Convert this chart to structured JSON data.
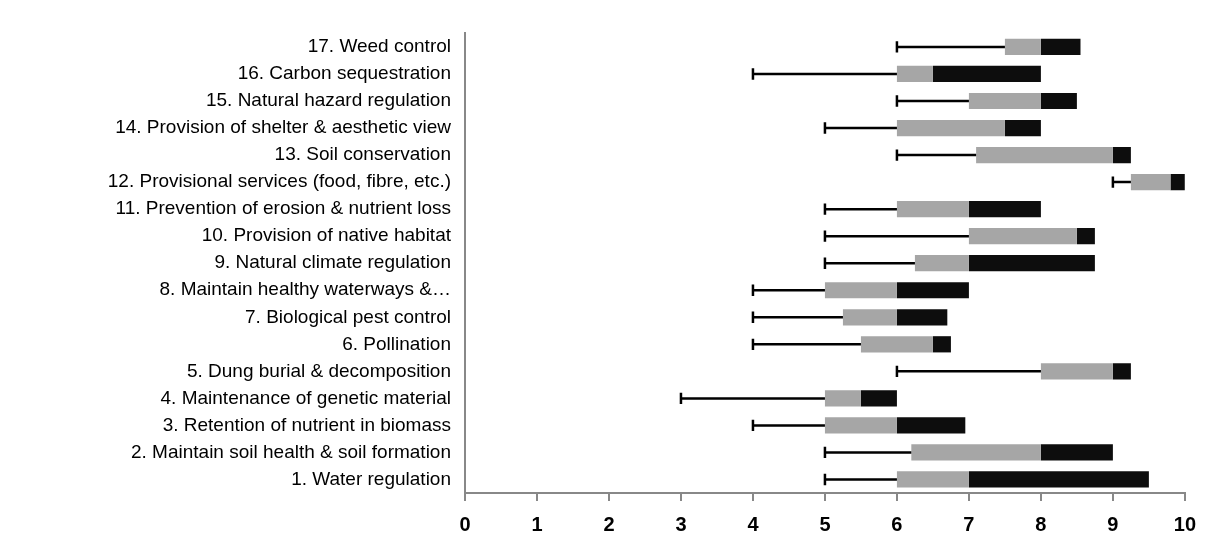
{
  "chart_data": {
    "type": "box",
    "orientation": "horizontal",
    "categories": [
      "17. Weed control",
      "16. Carbon sequestration",
      "15. Natural hazard regulation",
      "14. Provision of shelter & aesthetic view",
      "13. Soil conservation",
      "12. Provisional services (food, fibre, etc.)",
      "11. Prevention of erosion & nutrient loss",
      "10. Provision of native habitat",
      "9. Natural climate regulation",
      "8. Maintain healthy waterways &…",
      "7. Biological pest control",
      "6. Pollination",
      "5. Dung burial & decomposition",
      "4. Maintenance of genetic material",
      "3. Retention of nutrient in biomass",
      "2. Maintain soil health & soil formation",
      "1. Water regulation"
    ],
    "boxes": [
      {
        "low": 6,
        "q1": 7.5,
        "median": 8,
        "q3": 8.55,
        "high": 8.55
      },
      {
        "low": 4,
        "q1": 6,
        "median": 6.5,
        "q3": 8,
        "high": 8
      },
      {
        "low": 6,
        "q1": 7,
        "median": 8,
        "q3": 8.5,
        "high": 8.5
      },
      {
        "low": 5,
        "q1": 6,
        "median": 7.5,
        "q3": 8,
        "high": 8
      },
      {
        "low": 6,
        "q1": 7.1,
        "median": 9,
        "q3": 9.25,
        "high": 9.25
      },
      {
        "low": 9,
        "q1": 9.25,
        "median": 9.8,
        "q3": 10,
        "high": 10
      },
      {
        "low": 5,
        "q1": 6,
        "median": 7,
        "q3": 8,
        "high": 8
      },
      {
        "low": 5,
        "q1": 7,
        "median": 8.5,
        "q3": 8.75,
        "high": 8.75
      },
      {
        "low": 5,
        "q1": 6.25,
        "median": 7,
        "q3": 8.75,
        "high": 8.75
      },
      {
        "low": 4,
        "q1": 5,
        "median": 6,
        "q3": 7,
        "high": 7
      },
      {
        "low": 4,
        "q1": 5.25,
        "median": 6,
        "q3": 6.7,
        "high": 6.7
      },
      {
        "low": 4,
        "q1": 5.5,
        "median": 6.5,
        "q3": 6.75,
        "high": 6.75
      },
      {
        "low": 6,
        "q1": 8,
        "median": 9,
        "q3": 9.25,
        "high": 9.25
      },
      {
        "low": 3,
        "q1": 5,
        "median": 5.5,
        "q3": 6,
        "high": 6
      },
      {
        "low": 4,
        "q1": 5,
        "median": 6,
        "q3": 6.95,
        "high": 6.95
      },
      {
        "low": 5,
        "q1": 6.2,
        "median": 8,
        "q3": 9,
        "high": 9
      },
      {
        "low": 5,
        "q1": 6,
        "median": 7,
        "q3": 9.5,
        "high": 9.5
      }
    ],
    "color": "#0d0d0d",
    "colors": [
      "#a6a6a6",
      "#a6a6a6",
      "#a6a6a6",
      "#a6a6a6",
      "#a6a6a6",
      "#a6a6a6",
      "#a6a6a6",
      "#a6a6a6",
      "#a6a6a6",
      "#a6a6a6",
      "#a6a6a6",
      "#a6a6a6",
      "#a6a6a6",
      "#a6a6a6",
      "#a6a6a6",
      "#a6a6a6",
      "#a6a6a6"
    ],
    "xlim": [
      0,
      10
    ],
    "xticks": [
      0,
      1,
      2,
      3,
      4,
      5,
      6,
      7,
      8,
      9,
      10
    ],
    "grid": false,
    "legend": false
  }
}
